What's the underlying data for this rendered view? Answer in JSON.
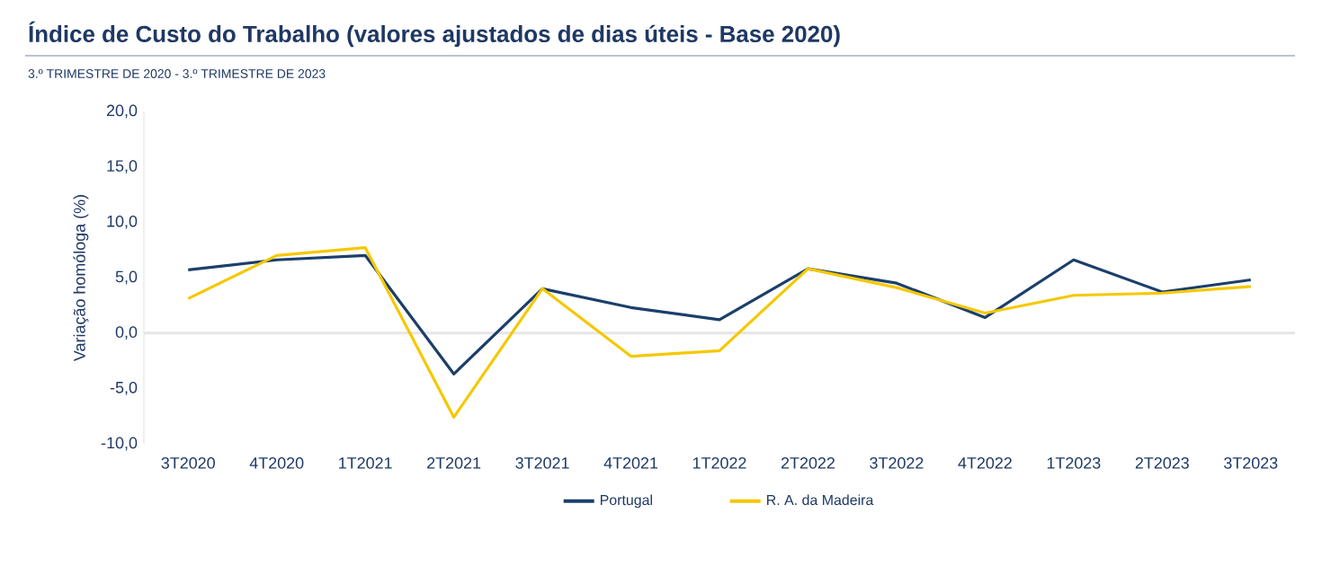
{
  "chart_data": {
    "type": "line",
    "title": "Índice de Custo do Trabalho (valores ajustados de dias úteis - Base 2020)",
    "subtitle": "3.º TRIMESTRE DE 2020 - 3.º TRIMESTRE DE 2023",
    "ylabel": "Variação homóloga (%)",
    "categories": [
      "3T2020",
      "4T2020",
      "1T2021",
      "2T2021",
      "3T2021",
      "4T2021",
      "1T2022",
      "2T2022",
      "3T2022",
      "4T2022",
      "1T2023",
      "2T2023",
      "3T2023"
    ],
    "series": [
      {
        "name": "Portugal",
        "color": "#1b3f6b",
        "values": [
          5.7,
          6.6,
          7.0,
          -3.7,
          4.0,
          2.3,
          1.2,
          5.8,
          4.5,
          1.4,
          6.6,
          3.7,
          4.8
        ]
      },
      {
        "name": "R. A. da Madeira",
        "color": "#f5c800",
        "values": [
          3.1,
          7.0,
          7.7,
          -7.6,
          4.0,
          -2.1,
          -1.6,
          5.8,
          4.1,
          1.8,
          3.4,
          3.6,
          4.2
        ]
      }
    ],
    "ylim": [
      -10,
      20
    ],
    "yticks": [
      {
        "value": -10,
        "label": "-10,0"
      },
      {
        "value": -5,
        "label": "-5,0"
      },
      {
        "value": 0,
        "label": "0,0"
      },
      {
        "value": 5,
        "label": "5,0"
      },
      {
        "value": 10,
        "label": "10,0"
      },
      {
        "value": 15,
        "label": "15,0"
      },
      {
        "value": 20,
        "label": "20,0"
      }
    ],
    "ref_lines": [
      {
        "axis": "y",
        "value": 0,
        "color": "#e6e6e6"
      }
    ],
    "grid": false,
    "legend": "bottom",
    "marker": "none",
    "line_style": "solid"
  }
}
